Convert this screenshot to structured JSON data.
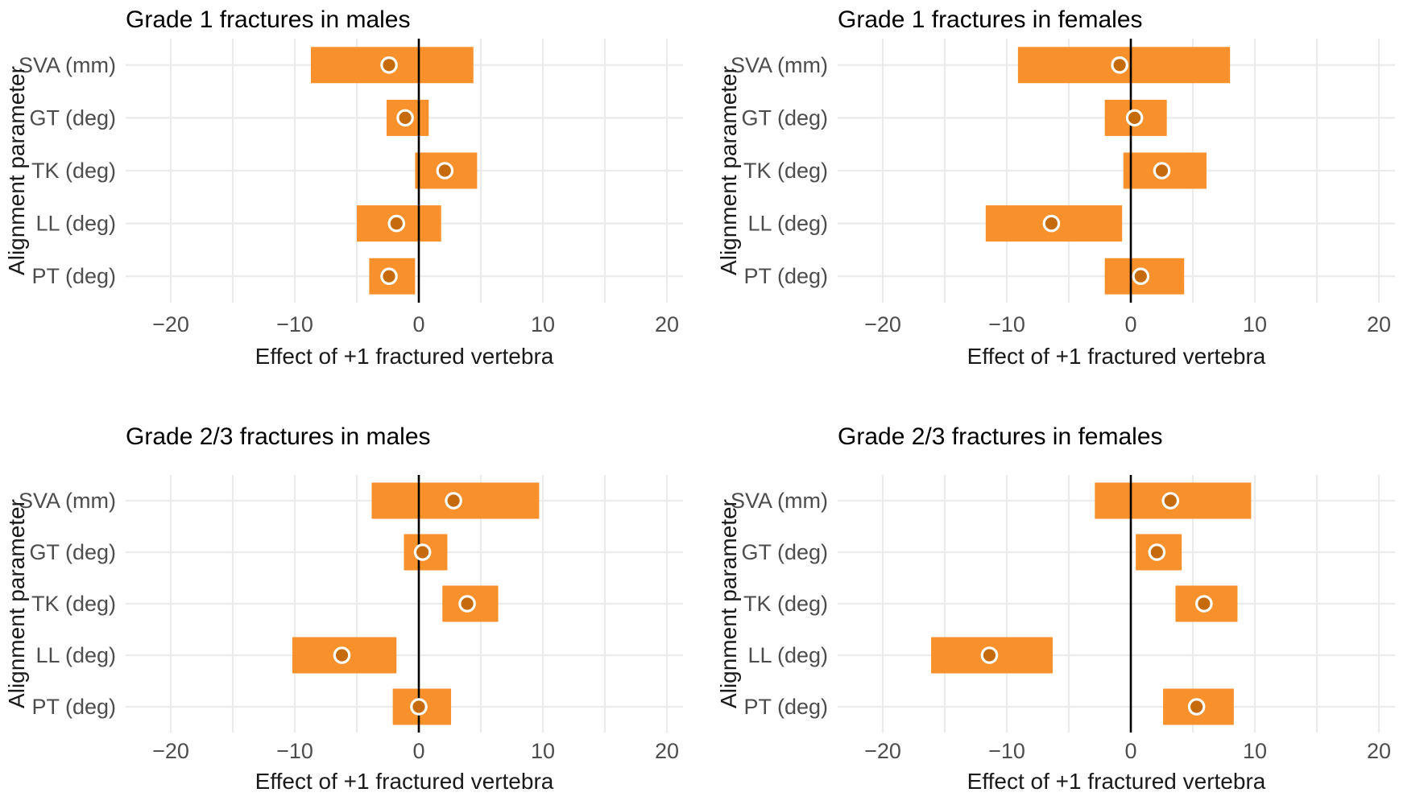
{
  "panels_shared": {
    "x_axis_title": "Effect of +1 fractured vertebra",
    "y_axis_title": "Alignment parameter",
    "x_tick_labels": [
      "−20",
      "−10",
      "0",
      "10",
      "20"
    ],
    "x_ticks": [
      -20,
      -10,
      0,
      10,
      20
    ],
    "categories": [
      "SVA (mm)",
      "GT (deg)",
      "TK (deg)",
      "LL (deg)",
      "PT (deg)"
    ]
  },
  "colors": {
    "bar": "#F8912C",
    "point_fill": "#C66A0E",
    "point_stroke": "#FFFFFF",
    "gridline": "#EBEBEB",
    "zero_line": "#000000",
    "tick_label": "#4D4D4D",
    "title": "#000000",
    "background": "#FFFFFF"
  },
  "chart_data": [
    {
      "type": "bar",
      "subtype": "horizontal_interval_forest",
      "title": "Grade 1 fractures in males",
      "xlabel": "Effect of +1 fractured vertebra",
      "ylabel": "Alignment parameter",
      "categories": [
        "SVA (mm)",
        "GT (deg)",
        "TK (deg)",
        "LL (deg)",
        "PT (deg)"
      ],
      "series": [
        {
          "name": "ci_lower",
          "values": [
            -8.7,
            -2.6,
            -0.3,
            -5.0,
            -4.0
          ]
        },
        {
          "name": "estimate",
          "values": [
            -2.4,
            -1.1,
            2.1,
            -1.8,
            -2.4
          ]
        },
        {
          "name": "ci_upper",
          "values": [
            4.4,
            0.8,
            4.7,
            1.8,
            -0.3
          ]
        }
      ],
      "xlim": [
        -23.5,
        21.3
      ],
      "xticks": [
        -20,
        -10,
        0,
        10,
        20
      ],
      "grid": true,
      "minor_grid_step": 5,
      "reference_line_x": 0,
      "legend": "none"
    },
    {
      "type": "bar",
      "subtype": "horizontal_interval_forest",
      "title": "Grade 1 fractures in females",
      "xlabel": "Effect of +1 fractured vertebra",
      "ylabel": "Alignment parameter",
      "categories": [
        "SVA (mm)",
        "GT (deg)",
        "TK (deg)",
        "LL (deg)",
        "PT (deg)"
      ],
      "series": [
        {
          "name": "ci_lower",
          "values": [
            -9.1,
            -2.1,
            -0.6,
            -11.7,
            -2.1
          ]
        },
        {
          "name": "estimate",
          "values": [
            -0.9,
            0.3,
            2.5,
            -6.4,
            0.8
          ]
        },
        {
          "name": "ci_upper",
          "values": [
            8.0,
            2.9,
            6.1,
            -0.7,
            4.3
          ]
        }
      ],
      "xlim": [
        -23.5,
        21.3
      ],
      "xticks": [
        -20,
        -10,
        0,
        10,
        20
      ],
      "grid": true,
      "minor_grid_step": 5,
      "reference_line_x": 0,
      "legend": "none"
    },
    {
      "type": "bar",
      "subtype": "horizontal_interval_forest",
      "title": "Grade 2/3 fractures in males",
      "xlabel": "Effect of +1 fractured vertebra",
      "ylabel": "Alignment parameter",
      "categories": [
        "SVA (mm)",
        "GT (deg)",
        "TK (deg)",
        "LL (deg)",
        "PT (deg)"
      ],
      "series": [
        {
          "name": "ci_lower",
          "values": [
            -3.8,
            -1.2,
            1.9,
            -10.2,
            -2.1
          ]
        },
        {
          "name": "estimate",
          "values": [
            2.8,
            0.3,
            3.9,
            -6.2,
            0.0
          ]
        },
        {
          "name": "ci_upper",
          "values": [
            9.7,
            2.3,
            6.4,
            -1.8,
            2.6
          ]
        }
      ],
      "xlim": [
        -23.5,
        21.3
      ],
      "xticks": [
        -20,
        -10,
        0,
        10,
        20
      ],
      "grid": true,
      "minor_grid_step": 5,
      "reference_line_x": 0,
      "legend": "none"
    },
    {
      "type": "bar",
      "subtype": "horizontal_interval_forest",
      "title": "Grade 2/3 fractures in females",
      "xlabel": "Effect of +1 fractured vertebra",
      "ylabel": "Alignment parameter",
      "categories": [
        "SVA (mm)",
        "GT (deg)",
        "TK (deg)",
        "LL (deg)",
        "PT (deg)"
      ],
      "series": [
        {
          "name": "ci_lower",
          "values": [
            -2.9,
            0.4,
            3.6,
            -16.1,
            2.6
          ]
        },
        {
          "name": "estimate",
          "values": [
            3.2,
            2.1,
            5.9,
            -11.4,
            5.3
          ]
        },
        {
          "name": "ci_upper",
          "values": [
            9.7,
            4.1,
            8.6,
            -6.3,
            8.3
          ]
        }
      ],
      "xlim": [
        -23.5,
        21.3
      ],
      "xticks": [
        -20,
        -10,
        0,
        10,
        20
      ],
      "grid": true,
      "minor_grid_step": 5,
      "reference_line_x": 0,
      "legend": "none"
    }
  ]
}
